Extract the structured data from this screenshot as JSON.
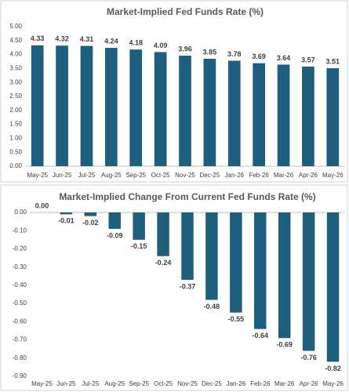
{
  "chart_data": [
    {
      "type": "bar",
      "title": "Market-Implied Fed Funds Rate (%)",
      "categories": [
        "May-25",
        "Jun-25",
        "Jul-25",
        "Aug-25",
        "Sep-25",
        "Oct-25",
        "Nov-25",
        "Dec-25",
        "Jan-26",
        "Feb-26",
        "Mar-26",
        "Apr-26",
        "May-26"
      ],
      "values": [
        4.33,
        4.32,
        4.31,
        4.24,
        4.18,
        4.09,
        3.96,
        3.85,
        3.78,
        3.69,
        3.64,
        3.57,
        3.51
      ],
      "color": "#1f5f7e",
      "grid": false,
      "ylim": [
        0,
        5
      ],
      "yticks": [
        {
          "value": 0,
          "label": "0.00"
        },
        {
          "value": 0.5,
          "label": "0.50"
        },
        {
          "value": 1,
          "label": "1.00"
        },
        {
          "value": 1.5,
          "label": "1.50"
        },
        {
          "value": 2,
          "label": "2.00"
        },
        {
          "value": 2.5,
          "label": "2.50"
        },
        {
          "value": 3,
          "label": "3.00"
        },
        {
          "value": 3.5,
          "label": "3.50"
        },
        {
          "value": 4,
          "label": "4.00"
        },
        {
          "value": 4.5,
          "label": "4.50"
        },
        {
          "value": 5,
          "label": "5.00"
        }
      ]
    },
    {
      "type": "bar",
      "title": "Market-Implied Change From Current Fed Funds Rate (%)",
      "categories": [
        "May-25",
        "Jun-25",
        "Jul-25",
        "Aug-25",
        "Sep-25",
        "Oct-25",
        "Nov-25",
        "Dec-25",
        "Jan-26",
        "Feb-26",
        "Mar-26",
        "Apr-26",
        "May-26"
      ],
      "values": [
        0,
        -0.01,
        -0.02,
        -0.09,
        -0.15,
        -0.24,
        -0.37,
        -0.48,
        -0.55,
        -0.64,
        -0.69,
        -0.76,
        -0.82
      ],
      "value_labels": [
        "0.00",
        "-0.01",
        "-0.02",
        "-0.09",
        "-0.15",
        "-0.24",
        "-0.37",
        "-0.48",
        "-0.55",
        "-0.64",
        "-0.69",
        "-0.76",
        "-0.82"
      ],
      "color": "#1f5f7e",
      "grid": false,
      "ylim": [
        -0.9,
        0
      ],
      "yticks": [
        {
          "value": 0,
          "label": "0.00"
        },
        {
          "value": -0.1,
          "label": "-0.10"
        },
        {
          "value": -0.2,
          "label": "-0.20"
        },
        {
          "value": -0.3,
          "label": "-0.30"
        },
        {
          "value": -0.4,
          "label": "-0.40"
        },
        {
          "value": -0.5,
          "label": "-0.50"
        },
        {
          "value": -0.6,
          "label": "-0.60"
        },
        {
          "value": -0.7,
          "label": "-0.70"
        },
        {
          "value": -0.8,
          "label": "-0.80"
        },
        {
          "value": -0.9,
          "label": "-0.90"
        }
      ]
    }
  ]
}
